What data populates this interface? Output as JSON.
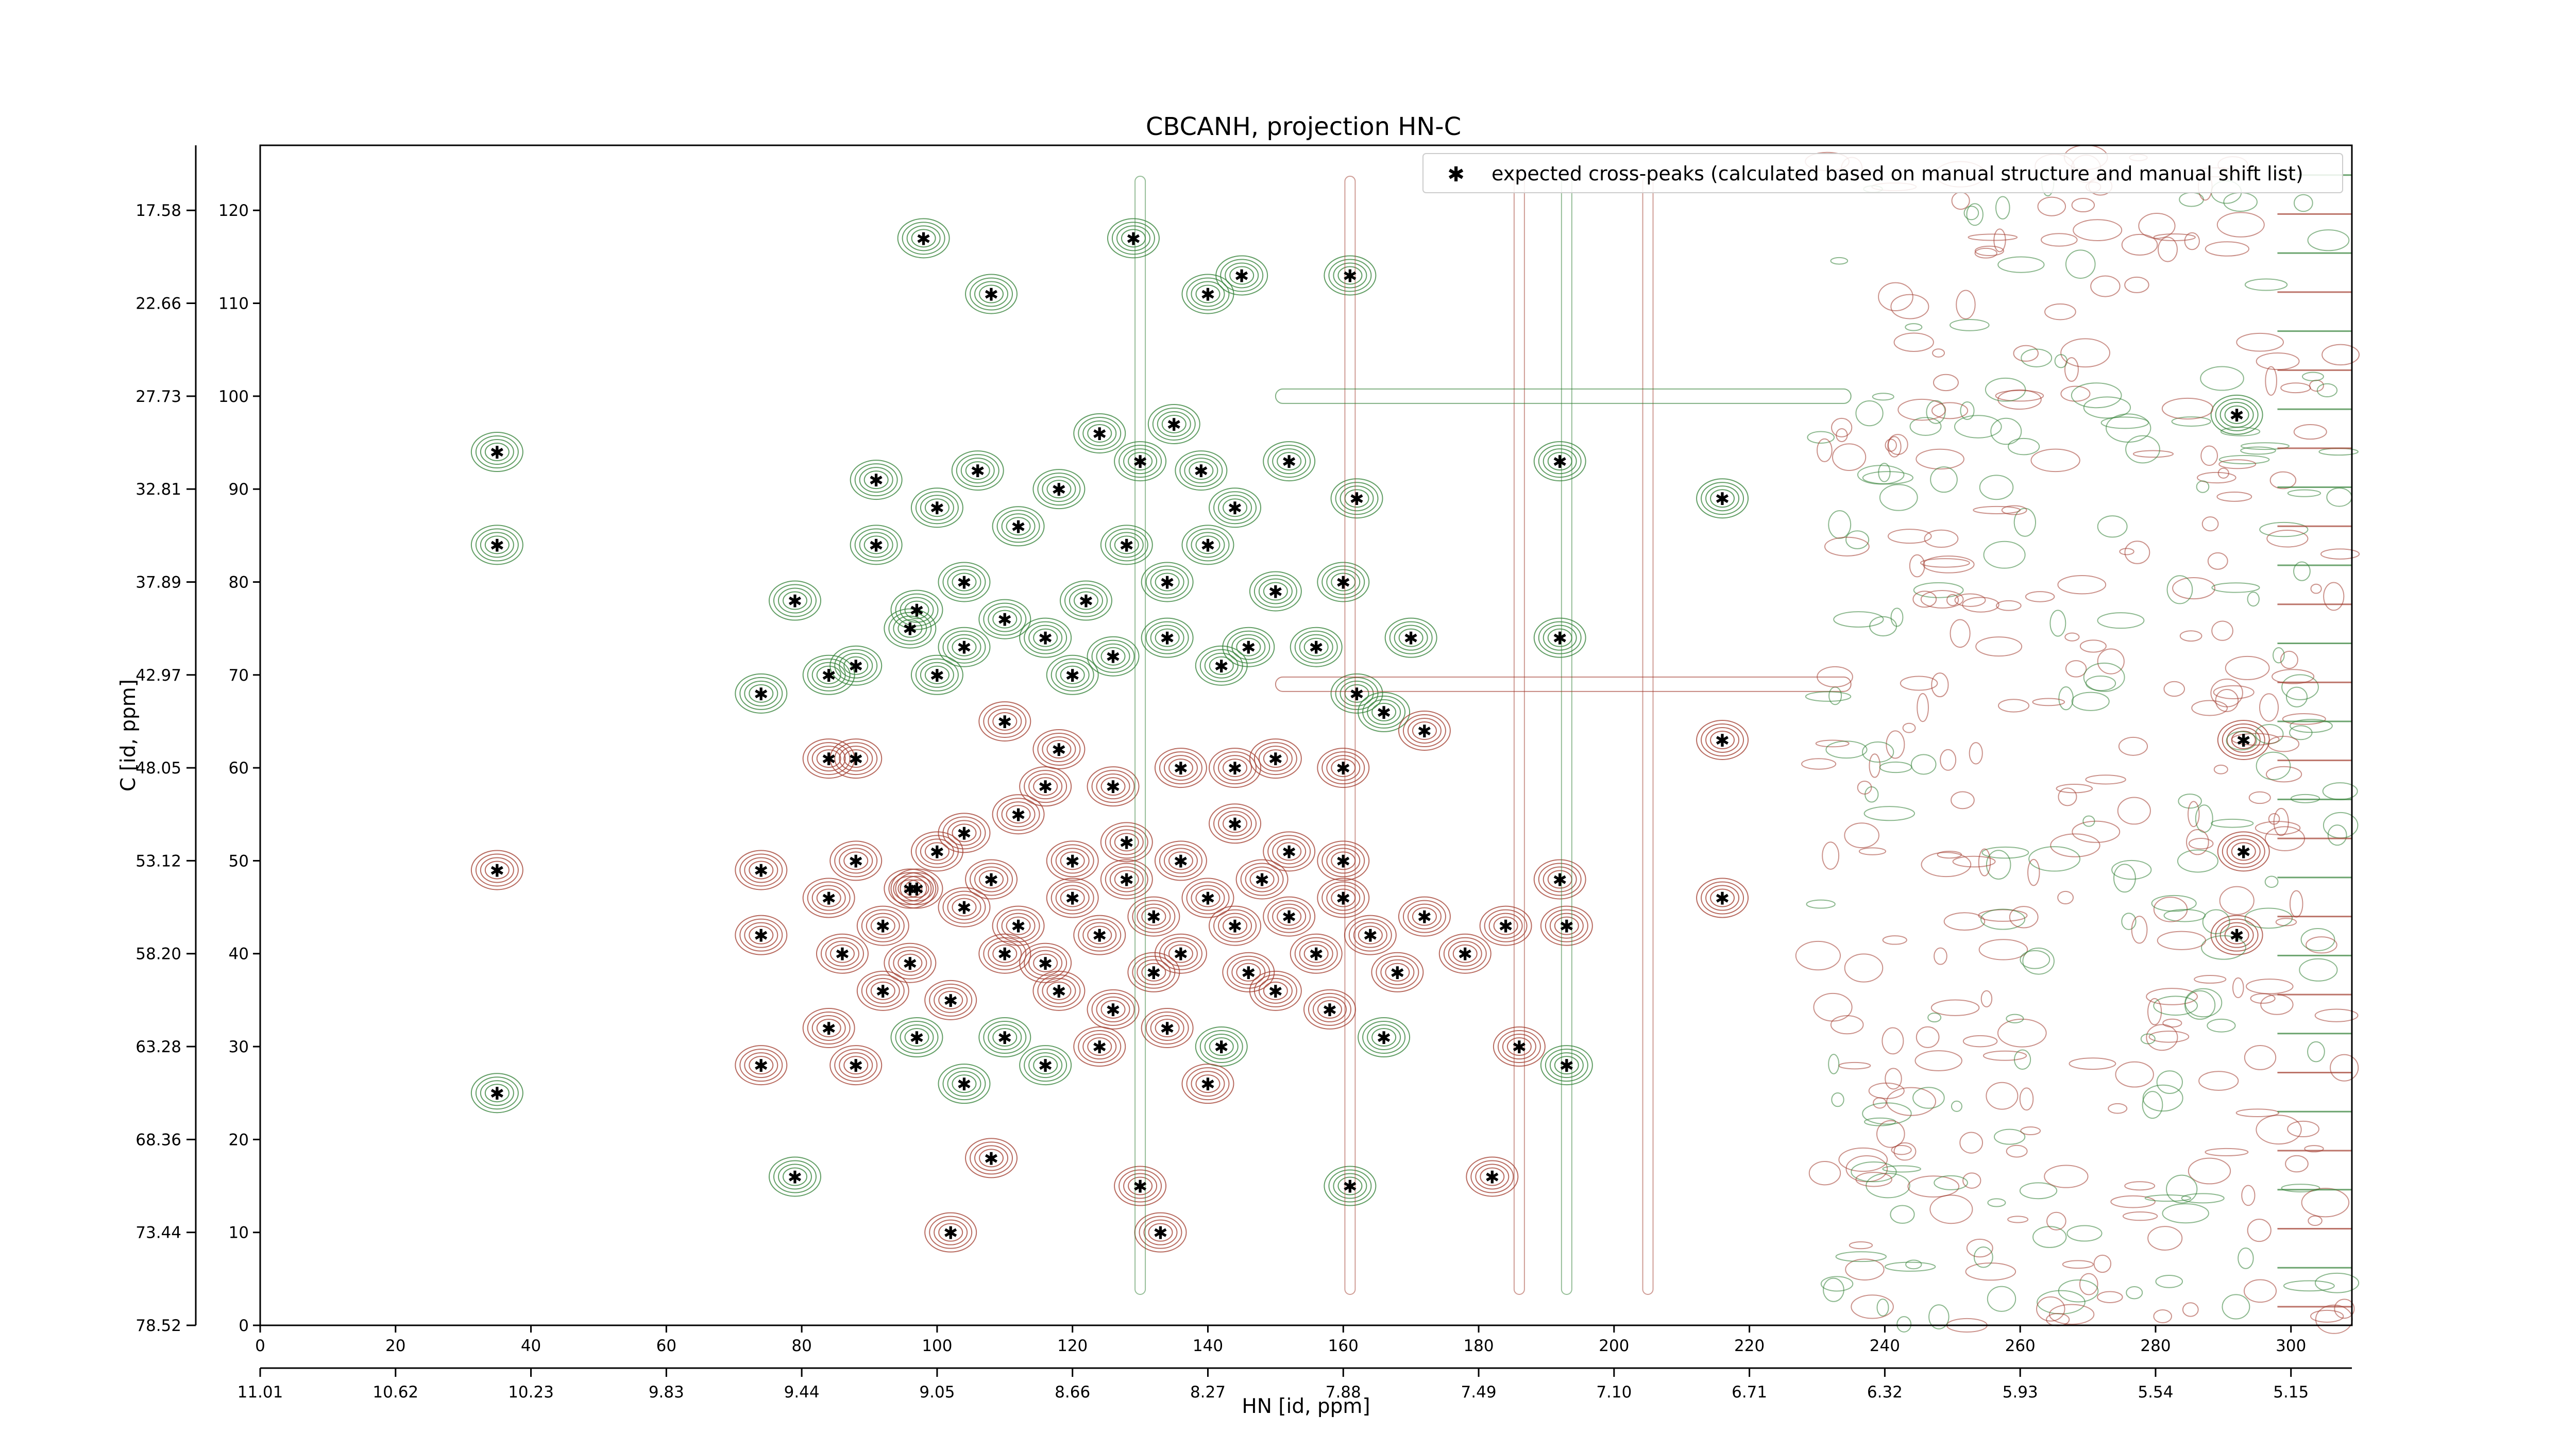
{
  "chart_data": {
    "type": "scatter",
    "title": "CBCANH, projection HN-C",
    "xlabel": "HN [id, ppm]",
    "ylabel": "C [id, ppm]",
    "xlim": [
      0,
      309
    ],
    "ylim": [
      0,
      127
    ],
    "x_ticks": [
      "0",
      "20",
      "40",
      "60",
      "80",
      "100",
      "120",
      "140",
      "160",
      "180",
      "200",
      "220",
      "240",
      "260",
      "280",
      "300"
    ],
    "y_ticks": [
      "0",
      "10",
      "20",
      "30",
      "40",
      "50",
      "60",
      "70",
      "80",
      "90",
      "100",
      "110",
      "120"
    ],
    "secondary_x_ticks": [
      "11.01",
      "10.62",
      "10.23",
      "9.83",
      "9.44",
      "9.05",
      "8.66",
      "8.27",
      "7.88",
      "7.49",
      "7.10",
      "6.71",
      "6.32",
      "5.93",
      "5.54",
      "5.15"
    ],
    "secondary_y_ticks": [
      "78.52",
      "73.44",
      "68.36",
      "63.28",
      "58.20",
      "53.12",
      "48.05",
      "42.97",
      "37.89",
      "32.81",
      "27.73",
      "22.66",
      "17.58"
    ],
    "grid": false,
    "legend": {
      "placement": "top-right",
      "entries": [
        "expected cross-peaks (calculated based on manual structure and manual shift list)"
      ]
    },
    "colors": {
      "marker": "#0000ff",
      "positive_contour": "#2e7d32",
      "negative_contour": "#a0392b"
    },
    "series": [
      {
        "name": "expected cross-peaks (calculated based on manual structure and manual shift list)",
        "points": [
          [
            35,
            94
          ],
          [
            35,
            84
          ],
          [
            35,
            49
          ],
          [
            35,
            25
          ],
          [
            74,
            68
          ],
          [
            74,
            49
          ],
          [
            74,
            42
          ],
          [
            74,
            28
          ],
          [
            79,
            78
          ],
          [
            79,
            16
          ],
          [
            84,
            70
          ],
          [
            84,
            61
          ],
          [
            84,
            46
          ],
          [
            84,
            32
          ],
          [
            88,
            61
          ],
          [
            88,
            71
          ],
          [
            88,
            28
          ],
          [
            91,
            84
          ],
          [
            91,
            91
          ],
          [
            97,
            77
          ],
          [
            97,
            47
          ],
          [
            97,
            31
          ],
          [
            98,
            117
          ],
          [
            102,
            10
          ],
          [
            104,
            26
          ],
          [
            108,
            111
          ],
          [
            108,
            18
          ],
          [
            129,
            117
          ],
          [
            130,
            15
          ],
          [
            133,
            10
          ],
          [
            140,
            111
          ],
          [
            145,
            113
          ],
          [
            161,
            113
          ],
          [
            161,
            15
          ],
          [
            182,
            16
          ],
          [
            186,
            30
          ],
          [
            193,
            28
          ],
          [
            192,
            93
          ],
          [
            192,
            74
          ],
          [
            192,
            48
          ],
          [
            184,
            43
          ],
          [
            193,
            43
          ],
          [
            216,
            89
          ],
          [
            216,
            63
          ],
          [
            216,
            46
          ],
          [
            292,
            98
          ],
          [
            293,
            63
          ],
          [
            293,
            51
          ],
          [
            292,
            42
          ],
          [
            104,
            80
          ],
          [
            112,
            86
          ],
          [
            100,
            88
          ],
          [
            106,
            92
          ],
          [
            118,
            90
          ],
          [
            124,
            96
          ],
          [
            130,
            93
          ],
          [
            135,
            97
          ],
          [
            139,
            92
          ],
          [
            144,
            88
          ],
          [
            140,
            84
          ],
          [
            134,
            80
          ],
          [
            128,
            84
          ],
          [
            122,
            78
          ],
          [
            116,
            74
          ],
          [
            110,
            76
          ],
          [
            104,
            73
          ],
          [
            100,
            70
          ],
          [
            96,
            75
          ],
          [
            120,
            70
          ],
          [
            126,
            72
          ],
          [
            134,
            74
          ],
          [
            142,
            71
          ],
          [
            146,
            73
          ],
          [
            150,
            79
          ],
          [
            156,
            73
          ],
          [
            160,
            80
          ],
          [
            162,
            89
          ],
          [
            152,
            93
          ],
          [
            170,
            74
          ],
          [
            162,
            68
          ],
          [
            96,
            47
          ],
          [
            100,
            51
          ],
          [
            104,
            45
          ],
          [
            108,
            48
          ],
          [
            112,
            43
          ],
          [
            116,
            39
          ],
          [
            120,
            46
          ],
          [
            124,
            42
          ],
          [
            128,
            48
          ],
          [
            132,
            44
          ],
          [
            136,
            40
          ],
          [
            140,
            46
          ],
          [
            144,
            43
          ],
          [
            148,
            48
          ],
          [
            152,
            44
          ],
          [
            156,
            40
          ],
          [
            160,
            46
          ],
          [
            164,
            42
          ],
          [
            168,
            38
          ],
          [
            104,
            53
          ],
          [
            112,
            55
          ],
          [
            120,
            50
          ],
          [
            128,
            52
          ],
          [
            136,
            50
          ],
          [
            144,
            54
          ],
          [
            152,
            51
          ],
          [
            160,
            50
          ],
          [
            110,
            40
          ],
          [
            118,
            36
          ],
          [
            126,
            34
          ],
          [
            134,
            32
          ],
          [
            142,
            30
          ],
          [
            150,
            36
          ],
          [
            158,
            34
          ],
          [
            166,
            31
          ],
          [
            172,
            44
          ],
          [
            178,
            40
          ],
          [
            102,
            35
          ],
          [
            96,
            39
          ],
          [
            92,
            43
          ],
          [
            88,
            50
          ],
          [
            86,
            40
          ],
          [
            92,
            36
          ],
          [
            116,
            28
          ],
          [
            124,
            30
          ],
          [
            140,
            26
          ],
          [
            110,
            31
          ],
          [
            132,
            38
          ],
          [
            146,
            38
          ],
          [
            116,
            58
          ],
          [
            126,
            58
          ],
          [
            136,
            60
          ],
          [
            144,
            60
          ],
          [
            150,
            61
          ],
          [
            160,
            60
          ],
          [
            166,
            66
          ],
          [
            172,
            64
          ],
          [
            110,
            65
          ],
          [
            118,
            62
          ]
        ]
      }
    ]
  }
}
